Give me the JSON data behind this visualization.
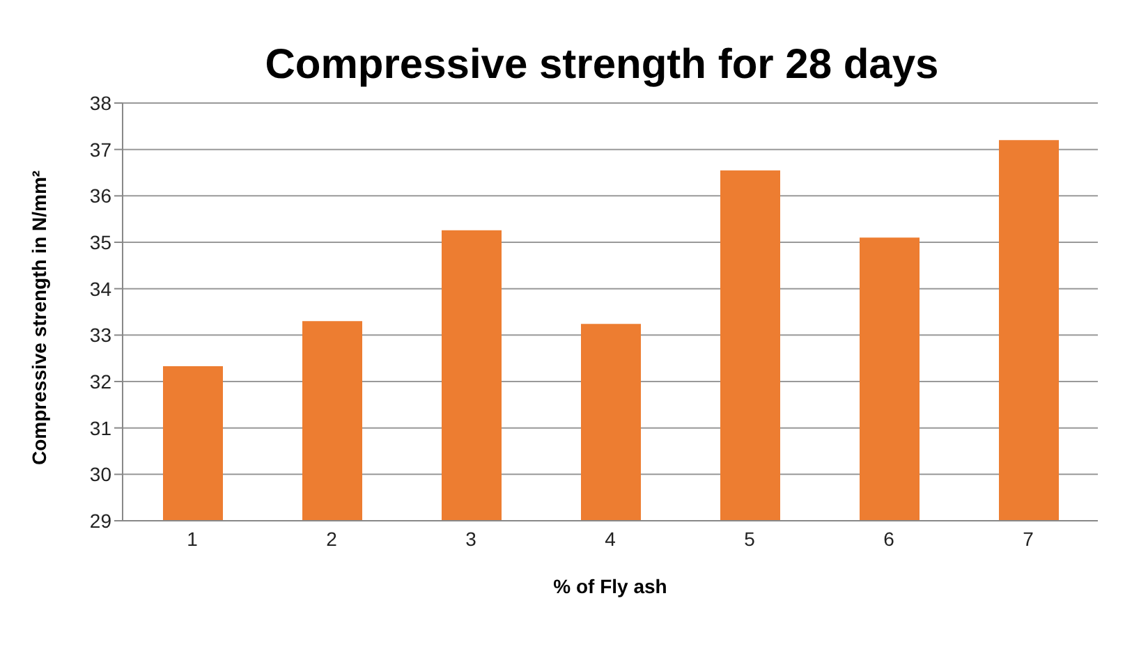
{
  "chart_data": {
    "type": "bar",
    "title": "Compressive strength for 28 days",
    "xlabel": "% of Fly ash",
    "ylabel": "Compressive strength in N/mm²",
    "categories": [
      "1",
      "2",
      "3",
      "4",
      "5",
      "6",
      "7"
    ],
    "values": [
      32.33,
      33.3,
      35.26,
      33.24,
      36.55,
      35.1,
      37.2
    ],
    "color": "#ed7d31",
    "ylim": [
      29,
      38
    ],
    "yticks": [
      29,
      30,
      31,
      32,
      33,
      34,
      35,
      36,
      37,
      38
    ],
    "grid": "y"
  }
}
